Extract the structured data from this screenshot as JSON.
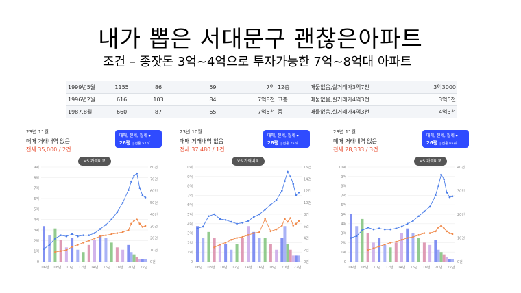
{
  "slide": {
    "title": "내가 뽑은 서대문구 괜찮은아파트",
    "subtitle": "조건 – 종잣돈 3억~4억으로 투자가능한 7억~8억대 아파트"
  },
  "table": {
    "rows": [
      [
        "1999년5월",
        "1155",
        "86",
        "59",
        "7억",
        "12층",
        "매물없음,실거래가3억7천",
        "3억3000"
      ],
      [
        "1996년2월",
        "616",
        "103",
        "84",
        "7억8천",
        "고층",
        "매물없음,실거래가4억3천",
        "3억5천"
      ],
      [
        "1987.8월",
        "660",
        "87",
        "65",
        "7억5천",
        "중",
        "매물없음,실거래가4억3천",
        "4억3천"
      ]
    ]
  },
  "panels": [
    {
      "date": "23년 11월",
      "line1": "매매 거래내역 없음",
      "line2": "전세 35,000 / 2건",
      "badge_top": "매매, 전세, 월세 ▾",
      "badge_main": "26평",
      "badge_sub": "| 전용 57㎡",
      "vs": "VS 가격비교",
      "x_labels": [
        "06년",
        "08년",
        "10년",
        "12년",
        "14년",
        "16년",
        "18년",
        "20년",
        "22년"
      ],
      "y_left": [
        "9억",
        "8억",
        "7억",
        "6억",
        "5억",
        "4억",
        "3억",
        "2억",
        "1억",
        "0"
      ],
      "y_right": [
        "80건",
        "70건",
        "60건",
        "50건",
        "40건",
        "30건",
        "20건",
        "10건",
        "0건"
      ]
    },
    {
      "date": "23년 10월",
      "line1": "매매 거래내역 없음",
      "line2": "전세 37,480 / 1건",
      "badge_top": "매매, 전세, 월세 ▾",
      "badge_main": "28평",
      "badge_sub": "| 전용 75㎡",
      "vs": "VS 가격비교",
      "x_labels": [
        "06년",
        "08년",
        "10년",
        "12년",
        "14년",
        "16년",
        "18년",
        "20년",
        "22년"
      ],
      "y_left": [
        "10억",
        "9억",
        "8억",
        "7억",
        "6억",
        "5억",
        "4억",
        "3억",
        "2억",
        "1억",
        "0"
      ],
      "y_right": [
        "16건",
        "14건",
        "12건",
        "10건",
        "8건",
        "6건",
        "4건",
        "2건",
        "0건"
      ]
    },
    {
      "date": "23년 11월",
      "line1": "매매 거래내역 없음",
      "line2": "전세 28,333 / 3건",
      "badge_top": "매매, 전세, 월세 ▾",
      "badge_main": "26평",
      "badge_sub": "| 전용 65㎡",
      "vs": "VS 가격비교",
      "x_labels": [
        "06년",
        "08년",
        "10년",
        "12년",
        "14년",
        "16년",
        "18년",
        "20년",
        "22년"
      ],
      "y_left": [
        "10억",
        "9억",
        "8억",
        "7억",
        "6억",
        "5억",
        "4억",
        "3억",
        "2억",
        "1억",
        "0"
      ],
      "y_right": [
        "40건",
        "30건",
        "20건",
        "10건",
        "0건"
      ]
    }
  ],
  "colors": {
    "sale": "#4a7de8",
    "jeonse": "#f08a4b",
    "badge": "#2f4bff",
    "accent_red": "#e8482b"
  },
  "chart_data": [
    {
      "type": "line",
      "x": [
        2005,
        2006,
        2007,
        2008,
        2009,
        2010,
        2011,
        2012,
        2013,
        2014,
        2015,
        2016,
        2017,
        2018,
        2019,
        2020,
        2020.5,
        2021,
        2021.5,
        2022,
        2022.5,
        2023
      ],
      "series": [
        {
          "name": "매매",
          "values": [
            1.2,
            1.6,
            2.2,
            2.5,
            2.4,
            2.6,
            2.4,
            2.5,
            2.5,
            2.7,
            3.1,
            3.5,
            4.0,
            4.7,
            5.6,
            6.8,
            7.6,
            8.2,
            8.4,
            7.0,
            6.3,
            6.1
          ]
        },
        {
          "name": "전세",
          "values": [
            null,
            null,
            0.9,
            1.0,
            1.1,
            1.4,
            1.6,
            1.8,
            2.0,
            2.2,
            2.4,
            2.5,
            2.6,
            2.7,
            2.8,
            3.0,
            3.6,
            3.9,
            4.0,
            3.6,
            3.3,
            3.4
          ]
        }
      ],
      "volume": [
        30,
        22,
        28,
        18,
        12,
        20,
        10,
        8,
        14,
        18,
        22,
        20,
        16,
        12,
        10,
        14,
        8,
        6,
        4,
        2,
        2,
        2
      ],
      "ylim": [
        0,
        9
      ],
      "y2lim": [
        0,
        80
      ]
    },
    {
      "type": "line",
      "x": [
        2005,
        2006,
        2007,
        2008,
        2009,
        2010,
        2011,
        2012,
        2013,
        2014,
        2015,
        2016,
        2017,
        2018,
        2019,
        2020,
        2020.5,
        2021,
        2021.5,
        2022,
        2022.5,
        2023
      ],
      "series": [
        {
          "name": "매매",
          "values": [
            3.5,
            3.7,
            4.8,
            5.0,
            4.5,
            4.4,
            4.2,
            4.0,
            4.1,
            4.3,
            4.7,
            5.0,
            5.5,
            6.0,
            6.5,
            7.5,
            8.5,
            9.5,
            9.0,
            8.2,
            7.0,
            7.3
          ]
        },
        {
          "name": "전세",
          "values": [
            null,
            null,
            null,
            1.5,
            1.8,
            2.0,
            2.3,
            2.5,
            2.6,
            2.8,
            3.0,
            3.1,
            4.5,
            3.2,
            3.4,
            3.8,
            4.5,
            4.2,
            4.6,
            3.8,
            4.0,
            4.3
          ]
        }
      ],
      "volume": [
        6,
        4,
        5,
        4,
        3,
        3,
        2,
        3,
        4,
        6,
        5,
        4,
        4,
        3,
        2,
        4,
        6,
        3,
        2,
        1,
        1,
        1
      ],
      "ylim": [
        0,
        10
      ],
      "y2lim": [
        0,
        16
      ]
    },
    {
      "type": "line",
      "x": [
        2005,
        2006,
        2007,
        2008,
        2009,
        2010,
        2011,
        2012,
        2013,
        2014,
        2015,
        2016,
        2017,
        2018,
        2019,
        2020,
        2020.5,
        2021,
        2021.5,
        2022,
        2022.5,
        2023
      ],
      "series": [
        {
          "name": "매매",
          "values": [
            2.5,
            2.7,
            3.3,
            3.6,
            3.4,
            3.5,
            3.4,
            3.4,
            3.5,
            3.7,
            4.0,
            4.3,
            4.8,
            5.3,
            5.8,
            7.0,
            8.0,
            9.2,
            8.7,
            7.3,
            6.8,
            6.9
          ]
        },
        {
          "name": "전세",
          "values": [
            null,
            null,
            null,
            1.2,
            1.4,
            1.6,
            1.8,
            2.0,
            2.1,
            2.3,
            2.5,
            2.6,
            2.8,
            3.0,
            3.0,
            3.2,
            3.6,
            3.8,
            3.5,
            3.2,
            3.0,
            2.9
          ]
        }
      ],
      "volume": [
        20,
        15,
        18,
        12,
        8,
        10,
        7,
        6,
        8,
        12,
        14,
        12,
        10,
        8,
        7,
        9,
        5,
        4,
        3,
        2,
        1,
        1
      ],
      "ylim": [
        0,
        10
      ],
      "y2lim": [
        0,
        40
      ]
    }
  ]
}
